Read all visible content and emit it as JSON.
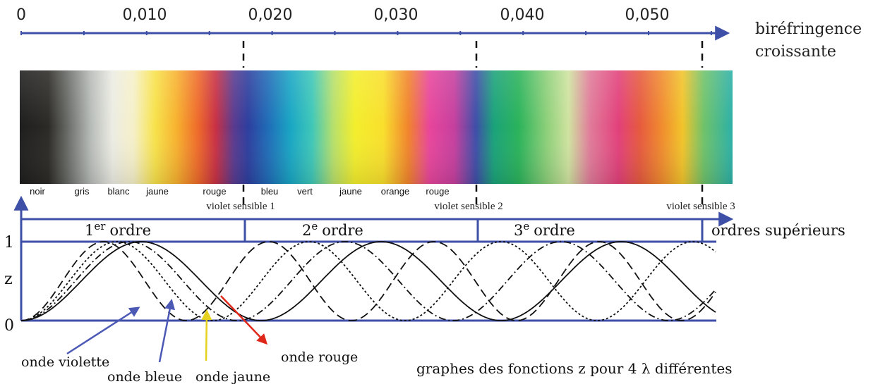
{
  "birefringence_axis": {
    "ticks": [
      "0",
      "0,010",
      "0,020",
      "0,030",
      "0,040",
      "0,050"
    ],
    "title_line1": "biréfringence",
    "title_line2": "croissante"
  },
  "color_names": [
    "noir",
    "gris",
    "blanc",
    "jaune",
    "rouge",
    "bleu",
    "vert",
    "jaune",
    "orange",
    "rouge"
  ],
  "sensitive_violets": [
    "violet sensible 1",
    "violet sensible 2",
    "violet sensible 3"
  ],
  "orders": {
    "first_num": "1",
    "first_sup": "er",
    "first_word": "ordre",
    "second_num": "2",
    "second_sup": "e",
    "second_word": "ordre",
    "third_num": "3",
    "third_sup": "e",
    "third_word": "ordre",
    "higher": "ordres supérieurs"
  },
  "z_axis": {
    "top": "1",
    "name": "z",
    "bottom": "0"
  },
  "waves": {
    "violet": "onde violette",
    "blue": "onde bleue",
    "yellow": "onde jaune",
    "red": "onde rouge"
  },
  "caption": {
    "text_before": "graphes des fonctions z  pour 4 ",
    "lambda": "λ",
    "text_after": " différentes"
  },
  "colors": {
    "axis_blue": "#3d4fa6",
    "arrow_violet": "#4b59b5",
    "arrow_blue": "#4b59b5",
    "arrow_yellow": "#e6d21e",
    "arrow_red": "#e0281a"
  }
}
